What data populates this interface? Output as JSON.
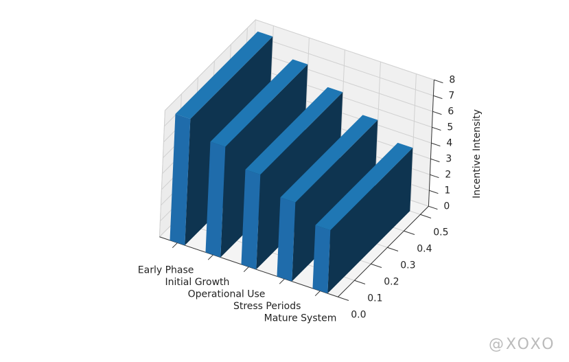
{
  "chart_data": {
    "type": "bar3d",
    "categories": [
      "Early Phase",
      "Initial Growth",
      "Operational Use",
      "Stress Periods",
      "Mature System"
    ],
    "values": [
      8,
      7,
      6,
      5,
      4
    ],
    "color": "#1f77b4",
    "zlabel": "Incentive Intensity",
    "zlim": [
      0,
      8
    ],
    "zticks": [
      0,
      1,
      2,
      3,
      4,
      5,
      6,
      7,
      8
    ],
    "ylim": [
      0,
      0.55
    ],
    "yticks": [
      {
        "value": 0,
        "label": "0.0"
      },
      0.1,
      0.2,
      0.3,
      0.4,
      0.5
    ],
    "grid": true
  },
  "watermark": "@XOXO"
}
